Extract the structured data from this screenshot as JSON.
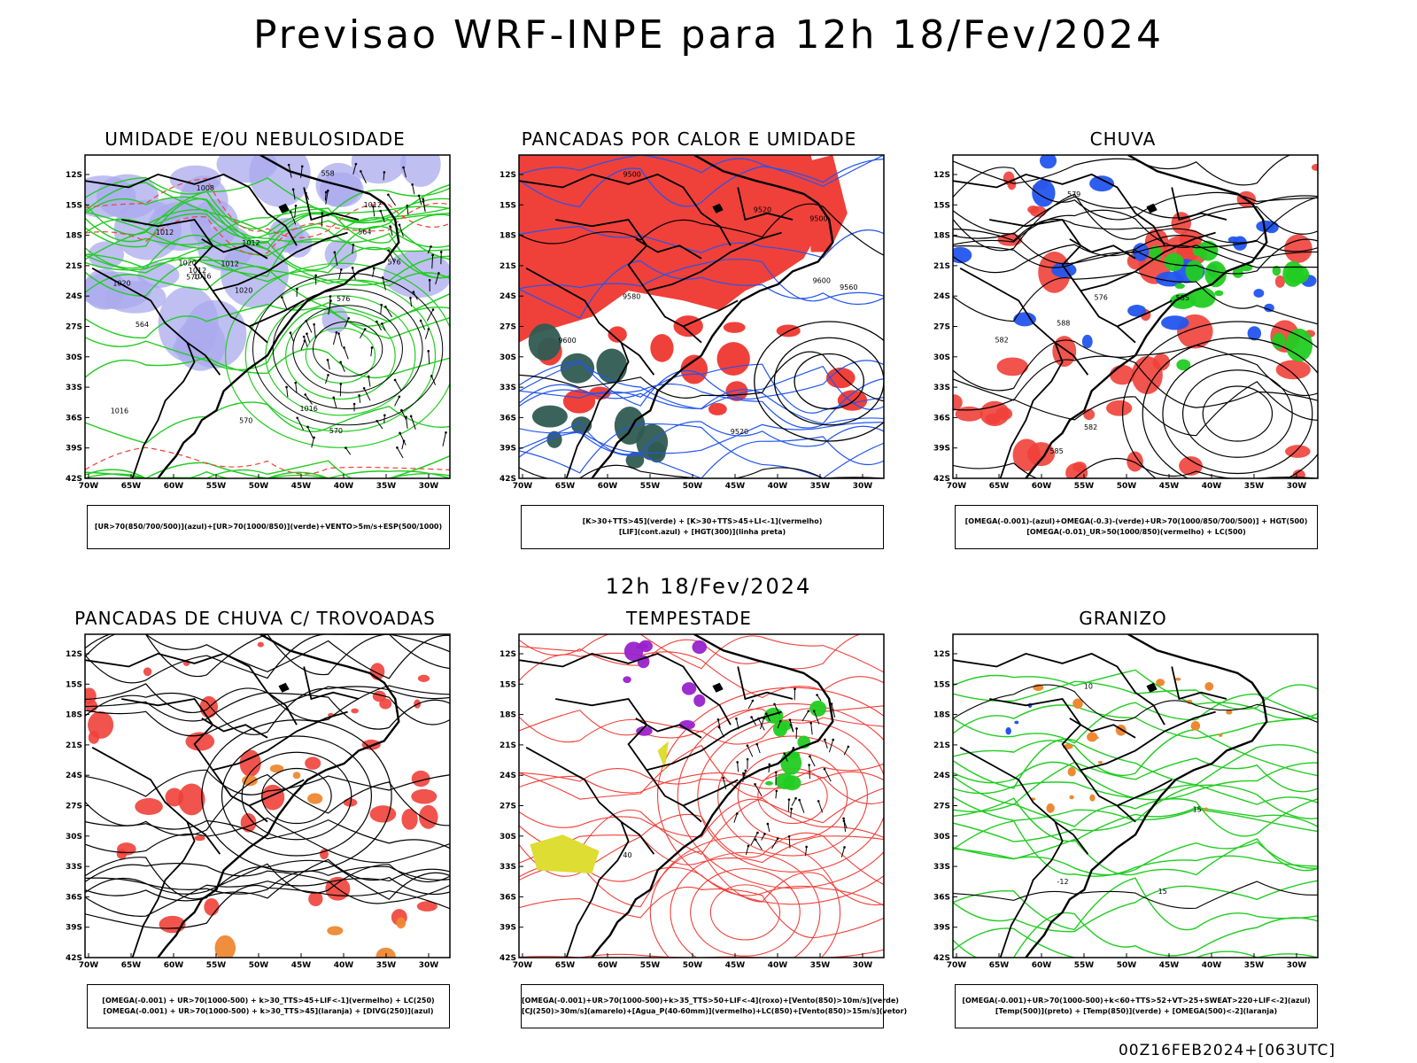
{
  "title": "Previsao WRF-INPE  para 12h 18/Fev/2024",
  "middle_title": "12h 18/Fev/2024",
  "footer": "00Z16FEB2024+[063UTC]",
  "axis": {
    "y_ticks": [
      "12S",
      "15S",
      "18S",
      "21S",
      "24S",
      "27S",
      "30S",
      "33S",
      "36S",
      "39S",
      "42S"
    ],
    "x_ticks": [
      "70W",
      "65W",
      "60W",
      "55W",
      "50W",
      "45W",
      "40W",
      "35W",
      "30W"
    ]
  },
  "colors": {
    "red": "#f0403a",
    "green": "#22cc22",
    "blue": "#2255ee",
    "lavender": "#a9a9ee",
    "dark_teal": "#2f5b52",
    "yellow": "#dddd33",
    "purple": "#9922cc",
    "orange": "#ee8833",
    "black": "#000000"
  },
  "panels": [
    {
      "title": "UMIDADE E/OU NEBULOSIDADE",
      "legend": [
        "[UR>70(850/700/500)](azul)+[UR>70(1000/850)](verde)+VENTO>5m/s+ESP(500/1000)"
      ],
      "labels": [
        "1012",
        "1016",
        "1020",
        "1012",
        "1012",
        "1012",
        "1008",
        "1012",
        "1016",
        "1020",
        "1016",
        "1020",
        "576",
        "576",
        "570",
        "564",
        "558",
        "570",
        "570",
        "564"
      ]
    },
    {
      "title": "PANCADAS POR CALOR E UMIDADE",
      "legend": [
        "[K>30+TTS>45](verde) + [K>30+TTS>45+LI<-1](vermelho)",
        "[LIF](cont.azul) + [HGT(300)](linha preta)"
      ],
      "labels": [
        "9580",
        "9560",
        "9520",
        "9500",
        "9600",
        "9520",
        "9500",
        "9600"
      ]
    },
    {
      "title": "CHUVA",
      "legend": [
        "[OMEGA(-0.001)-(azul)+OMEGA(-0.3)-(verde)+UR>70(1000/850/700/500)] + HGT(500)",
        "[OMEGA(-0.01)_UR>50(1000/850)(vermelho) + LC(500)"
      ],
      "labels": [
        "588",
        "585",
        "582",
        "579",
        "576",
        "582",
        "585"
      ]
    },
    {
      "title": "PANCADAS DE CHUVA C/ TROVOADAS",
      "legend": [
        "[OMEGA(-0.001) + UR>70(1000-500) + k>30_TTS>45+LIF<-1](vermelho) + LC(250)",
        "[OMEGA(-0.001) + UR>70(1000-500) + k>30_TTS>45](laranja) + [DIVG(250)](azul)"
      ],
      "labels": []
    },
    {
      "title": "TEMPESTADE",
      "legend": [
        "[OMEGA(-0.001)+UR>70(1000-500)+k>35_TTS>50+LIF<-4](roxo)+[Vento(850)>10m/s](verde)",
        "[CJ(250)>30m/s](amarelo)+[Agua_P(40-60mm)](vermelho)+LC(850)+[Vento(850)>15m/s](vetor)"
      ],
      "labels": [
        "40"
      ]
    },
    {
      "title": "GRANIZO",
      "legend": [
        "[OMEGA(-0.001)+UR>70(1000-500)+k<60+TTS>52+VT>25+SWEAT>220+LIF<-2](azul)",
        "[Temp(500)](preto) + [Temp(850)](verde) + [OMEGA(500)<-2](laranja)"
      ],
      "labels": [
        "-12",
        "15",
        "10",
        "15"
      ]
    }
  ]
}
